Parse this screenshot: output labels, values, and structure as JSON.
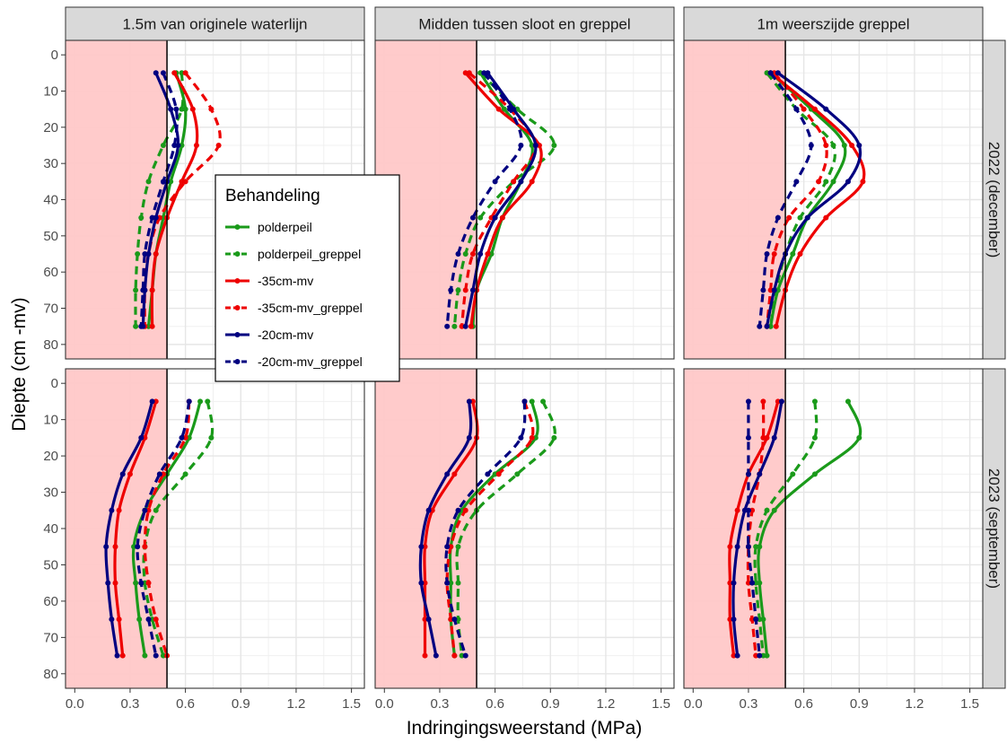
{
  "chart_data": {
    "type": "line",
    "xlabel": "Indringingsweerstand (MPa)",
    "ylabel": "Diepte (cm -mv)",
    "xlim": [
      -0.05,
      1.57
    ],
    "ylim": [
      84,
      -4
    ],
    "y_reversed": true,
    "x_ticks": [
      "0.0",
      "0.3",
      "0.6",
      "0.9",
      "1.2",
      "1.5"
    ],
    "y_ticks": [
      "0",
      "10",
      "20",
      "30",
      "40",
      "50",
      "60",
      "70",
      "80"
    ],
    "shaded_region": {
      "x": [
        0,
        0.5
      ],
      "color": "#ffc8c8"
    },
    "reference_line_x": 0.5,
    "grid": true,
    "legend": {
      "title": "Behandeling",
      "placement": "inside top-left panel, lower right",
      "items": [
        {
          "label": "polderpeil",
          "color": "#1a9a1a",
          "dash": false
        },
        {
          "label": "polderpeil_greppel",
          "color": "#1a9a1a",
          "dash": true
        },
        {
          "label": "-35cm-mv",
          "color": "#ee0000",
          "dash": false
        },
        {
          "label": "-35cm-mv_greppel",
          "color": "#ee0000",
          "dash": true
        },
        {
          "label": "-20cm-mv",
          "color": "#000080",
          "dash": false
        },
        {
          "label": "-20cm-mv_greppel",
          "color": "#000080",
          "dash": true
        }
      ]
    },
    "col_labels": [
      "1.5m van originele waterlijn",
      "Midden tussen sloot en greppel",
      "1m weerszijde greppel"
    ],
    "row_labels": [
      "2022 (december)",
      "2023 (september)"
    ],
    "depths": [
      5,
      15,
      25,
      35,
      45,
      55,
      65,
      75
    ],
    "panels": [
      {
        "row": 0,
        "col": 0,
        "series": [
          {
            "name": "polderpeil",
            "x": [
              0.55,
              0.6,
              0.58,
              0.52,
              0.48,
              0.44,
              0.42,
              0.4
            ]
          },
          {
            "name": "polderpeil_greppel",
            "x": [
              0.58,
              0.58,
              0.48,
              0.4,
              0.36,
              0.34,
              0.33,
              0.33
            ]
          },
          {
            "name": "-35cm-mv",
            "x": [
              0.54,
              0.64,
              0.66,
              0.58,
              0.5,
              0.44,
              0.42,
              0.42
            ]
          },
          {
            "name": "-35cm-mv_greppel",
            "x": [
              0.6,
              0.74,
              0.78,
              0.6,
              0.46,
              0.4,
              0.38,
              0.38
            ]
          },
          {
            "name": "-20cm-mv",
            "x": [
              0.44,
              0.52,
              0.56,
              0.5,
              0.44,
              0.4,
              0.38,
              0.37
            ]
          },
          {
            "name": "-20cm-mv_greppel",
            "x": [
              0.48,
              0.55,
              0.54,
              0.48,
              0.42,
              0.38,
              0.37,
              0.36
            ]
          }
        ]
      },
      {
        "row": 0,
        "col": 1,
        "series": [
          {
            "name": "polderpeil",
            "x": [
              0.52,
              0.65,
              0.8,
              0.74,
              0.64,
              0.58,
              0.5,
              0.48
            ]
          },
          {
            "name": "polderpeil_greppel",
            "x": [
              0.52,
              0.72,
              0.92,
              0.7,
              0.52,
              0.44,
              0.4,
              0.38
            ]
          },
          {
            "name": "-35cm-mv",
            "x": [
              0.44,
              0.62,
              0.84,
              0.8,
              0.64,
              0.56,
              0.5,
              0.47
            ]
          },
          {
            "name": "-35cm-mv_greppel",
            "x": [
              0.46,
              0.68,
              0.82,
              0.7,
              0.58,
              0.48,
              0.44,
              0.42
            ]
          },
          {
            "name": "-20cm-mv",
            "x": [
              0.56,
              0.7,
              0.82,
              0.74,
              0.6,
              0.52,
              0.48,
              0.44
            ]
          },
          {
            "name": "-20cm-mv_greppel",
            "x": [
              0.54,
              0.68,
              0.74,
              0.6,
              0.48,
              0.4,
              0.36,
              0.34
            ]
          }
        ]
      },
      {
        "row": 0,
        "col": 2,
        "series": [
          {
            "name": "polderpeil",
            "x": [
              0.42,
              0.64,
              0.82,
              0.76,
              0.62,
              0.54,
              0.46,
              0.42
            ]
          },
          {
            "name": "polderpeil_greppel",
            "x": [
              0.4,
              0.56,
              0.76,
              0.72,
              0.58,
              0.5,
              0.45,
              0.42
            ]
          },
          {
            "name": "-35cm-mv",
            "x": [
              0.42,
              0.66,
              0.86,
              0.92,
              0.72,
              0.58,
              0.5,
              0.45
            ]
          },
          {
            "name": "-35cm-mv_greppel",
            "x": [
              0.44,
              0.6,
              0.72,
              0.68,
              0.52,
              0.44,
              0.42,
              0.4
            ]
          },
          {
            "name": "-20cm-mv",
            "x": [
              0.46,
              0.72,
              0.9,
              0.84,
              0.62,
              0.5,
              0.44,
              0.4
            ]
          },
          {
            "name": "-20cm-mv_greppel",
            "x": [
              0.42,
              0.56,
              0.64,
              0.56,
              0.46,
              0.4,
              0.38,
              0.36
            ]
          }
        ]
      },
      {
        "row": 1,
        "col": 0,
        "series": [
          {
            "name": "polderpeil",
            "x": [
              0.68,
              0.62,
              0.5,
              0.38,
              0.32,
              0.33,
              0.35,
              0.38
            ]
          },
          {
            "name": "polderpeil_greppel",
            "x": [
              0.72,
              0.74,
              0.6,
              0.44,
              0.38,
              0.38,
              0.42,
              0.48
            ]
          },
          {
            "name": "-35cm-mv",
            "x": [
              0.44,
              0.38,
              0.3,
              0.24,
              0.22,
              0.22,
              0.24,
              0.26
            ]
          },
          {
            "name": "-35cm-mv_greppel",
            "x": [
              0.62,
              0.6,
              0.48,
              0.4,
              0.38,
              0.4,
              0.44,
              0.5
            ]
          },
          {
            "name": "-20cm-mv",
            "x": [
              0.42,
              0.36,
              0.26,
              0.2,
              0.17,
              0.18,
              0.2,
              0.23
            ]
          },
          {
            "name": "-20cm-mv_greppel",
            "x": [
              0.62,
              0.58,
              0.46,
              0.38,
              0.34,
              0.36,
              0.4,
              0.44
            ]
          }
        ]
      },
      {
        "row": 1,
        "col": 1,
        "series": [
          {
            "name": "polderpeil",
            "x": [
              0.8,
              0.82,
              0.6,
              0.42,
              0.36,
              0.36,
              0.36,
              0.38
            ]
          },
          {
            "name": "polderpeil_greppel",
            "x": [
              0.86,
              0.92,
              0.72,
              0.5,
              0.4,
              0.4,
              0.4,
              0.42
            ]
          },
          {
            "name": "-35cm-mv",
            "x": [
              0.48,
              0.5,
              0.38,
              0.26,
              0.22,
              0.22,
              0.22,
              0.22
            ]
          },
          {
            "name": "-35cm-mv_greppel",
            "x": [
              0.76,
              0.8,
              0.62,
              0.44,
              0.36,
              0.34,
              0.36,
              0.38
            ]
          },
          {
            "name": "-20cm-mv",
            "x": [
              0.46,
              0.46,
              0.34,
              0.24,
              0.2,
              0.2,
              0.24,
              0.28
            ]
          },
          {
            "name": "-20cm-mv_greppel",
            "x": [
              0.76,
              0.74,
              0.56,
              0.4,
              0.34,
              0.34,
              0.38,
              0.44
            ]
          }
        ]
      },
      {
        "row": 1,
        "col": 2,
        "series": [
          {
            "name": "polderpeil",
            "x": [
              0.84,
              0.9,
              0.66,
              0.44,
              0.36,
              0.36,
              0.38,
              0.4
            ]
          },
          {
            "name": "polderpeil_greppel",
            "x": [
              0.66,
              0.66,
              0.54,
              0.4,
              0.34,
              0.34,
              0.36,
              0.38
            ]
          },
          {
            "name": "-35cm-mv",
            "x": [
              0.46,
              0.4,
              0.3,
              0.24,
              0.2,
              0.2,
              0.2,
              0.22
            ]
          },
          {
            "name": "-35cm-mv_greppel",
            "x": [
              0.38,
              0.38,
              0.36,
              0.32,
              0.3,
              0.3,
              0.32,
              0.34
            ]
          },
          {
            "name": "-20cm-mv",
            "x": [
              0.48,
              0.44,
              0.36,
              0.28,
              0.24,
              0.22,
              0.22,
              0.24
            ]
          },
          {
            "name": "-20cm-mv_greppel",
            "x": [
              0.3,
              0.3,
              0.3,
              0.3,
              0.3,
              0.32,
              0.34,
              0.36
            ]
          }
        ]
      }
    ]
  }
}
